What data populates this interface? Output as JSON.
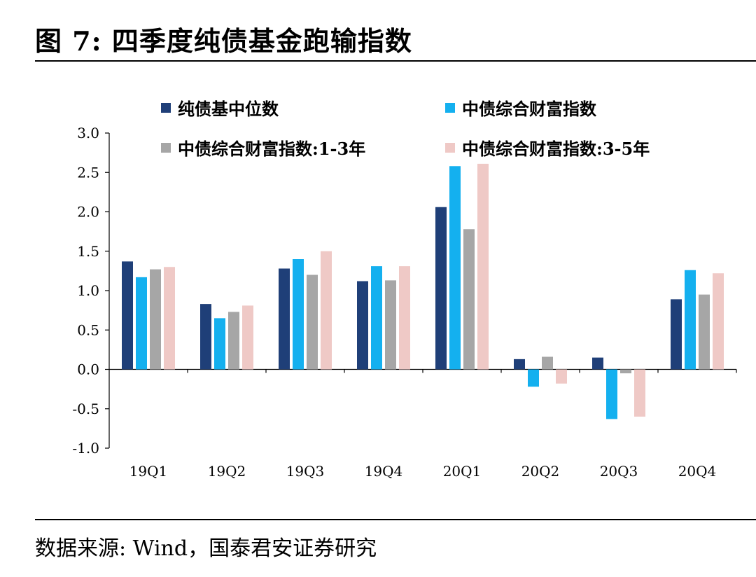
{
  "figure": {
    "title": "图 7:  四季度纯债基金跑输指数",
    "source": "数据来源:  Wind，国泰君安证券研究"
  },
  "chart_data": {
    "type": "bar",
    "title": "",
    "xlabel": "",
    "ylabel": "",
    "categories": [
      "19Q1",
      "19Q2",
      "19Q3",
      "19Q4",
      "20Q1",
      "20Q2",
      "20Q3",
      "20Q4"
    ],
    "ylim": [
      -1.0,
      3.0
    ],
    "yticks": [
      "3.0",
      "2.5",
      "2.0",
      "1.5",
      "1.0",
      "0.5",
      "0.0",
      "-0.5",
      "-1.0"
    ],
    "ytick_values": [
      3.0,
      2.5,
      2.0,
      1.5,
      1.0,
      0.5,
      0.0,
      -0.5,
      -1.0
    ],
    "grid": false,
    "legend_position": "top",
    "series": [
      {
        "name": "纯债基中位数",
        "color": "#1f3f78",
        "values": [
          1.37,
          0.83,
          1.28,
          1.12,
          2.06,
          0.13,
          0.15,
          0.89
        ]
      },
      {
        "name": "中债综合财富指数",
        "color": "#14b0ef",
        "values": [
          1.17,
          0.65,
          1.4,
          1.31,
          2.58,
          -0.22,
          -0.63,
          1.26
        ]
      },
      {
        "name": "中债综合财富指数:1-3年",
        "color": "#a6a6a6",
        "values": [
          1.27,
          0.73,
          1.2,
          1.13,
          1.78,
          0.16,
          -0.05,
          0.95
        ]
      },
      {
        "name": "中债综合财富指数:3-5年",
        "color": "#efc9c6",
        "values": [
          1.3,
          0.81,
          1.5,
          1.31,
          2.61,
          -0.18,
          -0.6,
          1.22
        ]
      }
    ]
  }
}
